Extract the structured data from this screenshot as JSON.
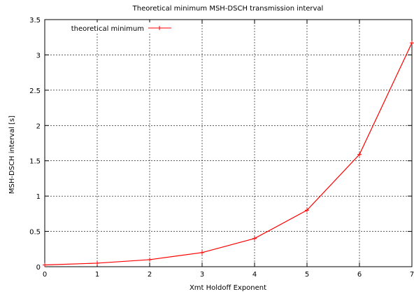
{
  "chart_data": {
    "type": "line",
    "title": "Theoretical minimum MSH-DSCH transmission interval",
    "xlabel": "Xmt  Holdoff  Exponent",
    "ylabel": "MSH-DSCH interval [s]",
    "xlim": [
      0,
      7
    ],
    "ylim": [
      0,
      3.5
    ],
    "xticks": [
      0,
      1,
      2,
      3,
      4,
      5,
      6,
      7
    ],
    "yticks": [
      0,
      0.5,
      1,
      1.5,
      2,
      2.5,
      3,
      3.5
    ],
    "xtick_labels": [
      "0",
      "1",
      "2",
      "3",
      "4",
      "5",
      "6",
      "7"
    ],
    "ytick_labels": [
      "0",
      "0.5",
      "1",
      "1.5",
      "2",
      "2.5",
      "3",
      "3.5"
    ],
    "grid": true,
    "legend_position": "top-left",
    "series": [
      {
        "name": "theoretical minimum",
        "color": "#ff0000",
        "x": [
          0,
          1,
          2,
          3,
          4,
          5,
          6,
          7
        ],
        "y": [
          0.025,
          0.05,
          0.1,
          0.2,
          0.4,
          0.8,
          1.59,
          3.17
        ]
      }
    ]
  }
}
